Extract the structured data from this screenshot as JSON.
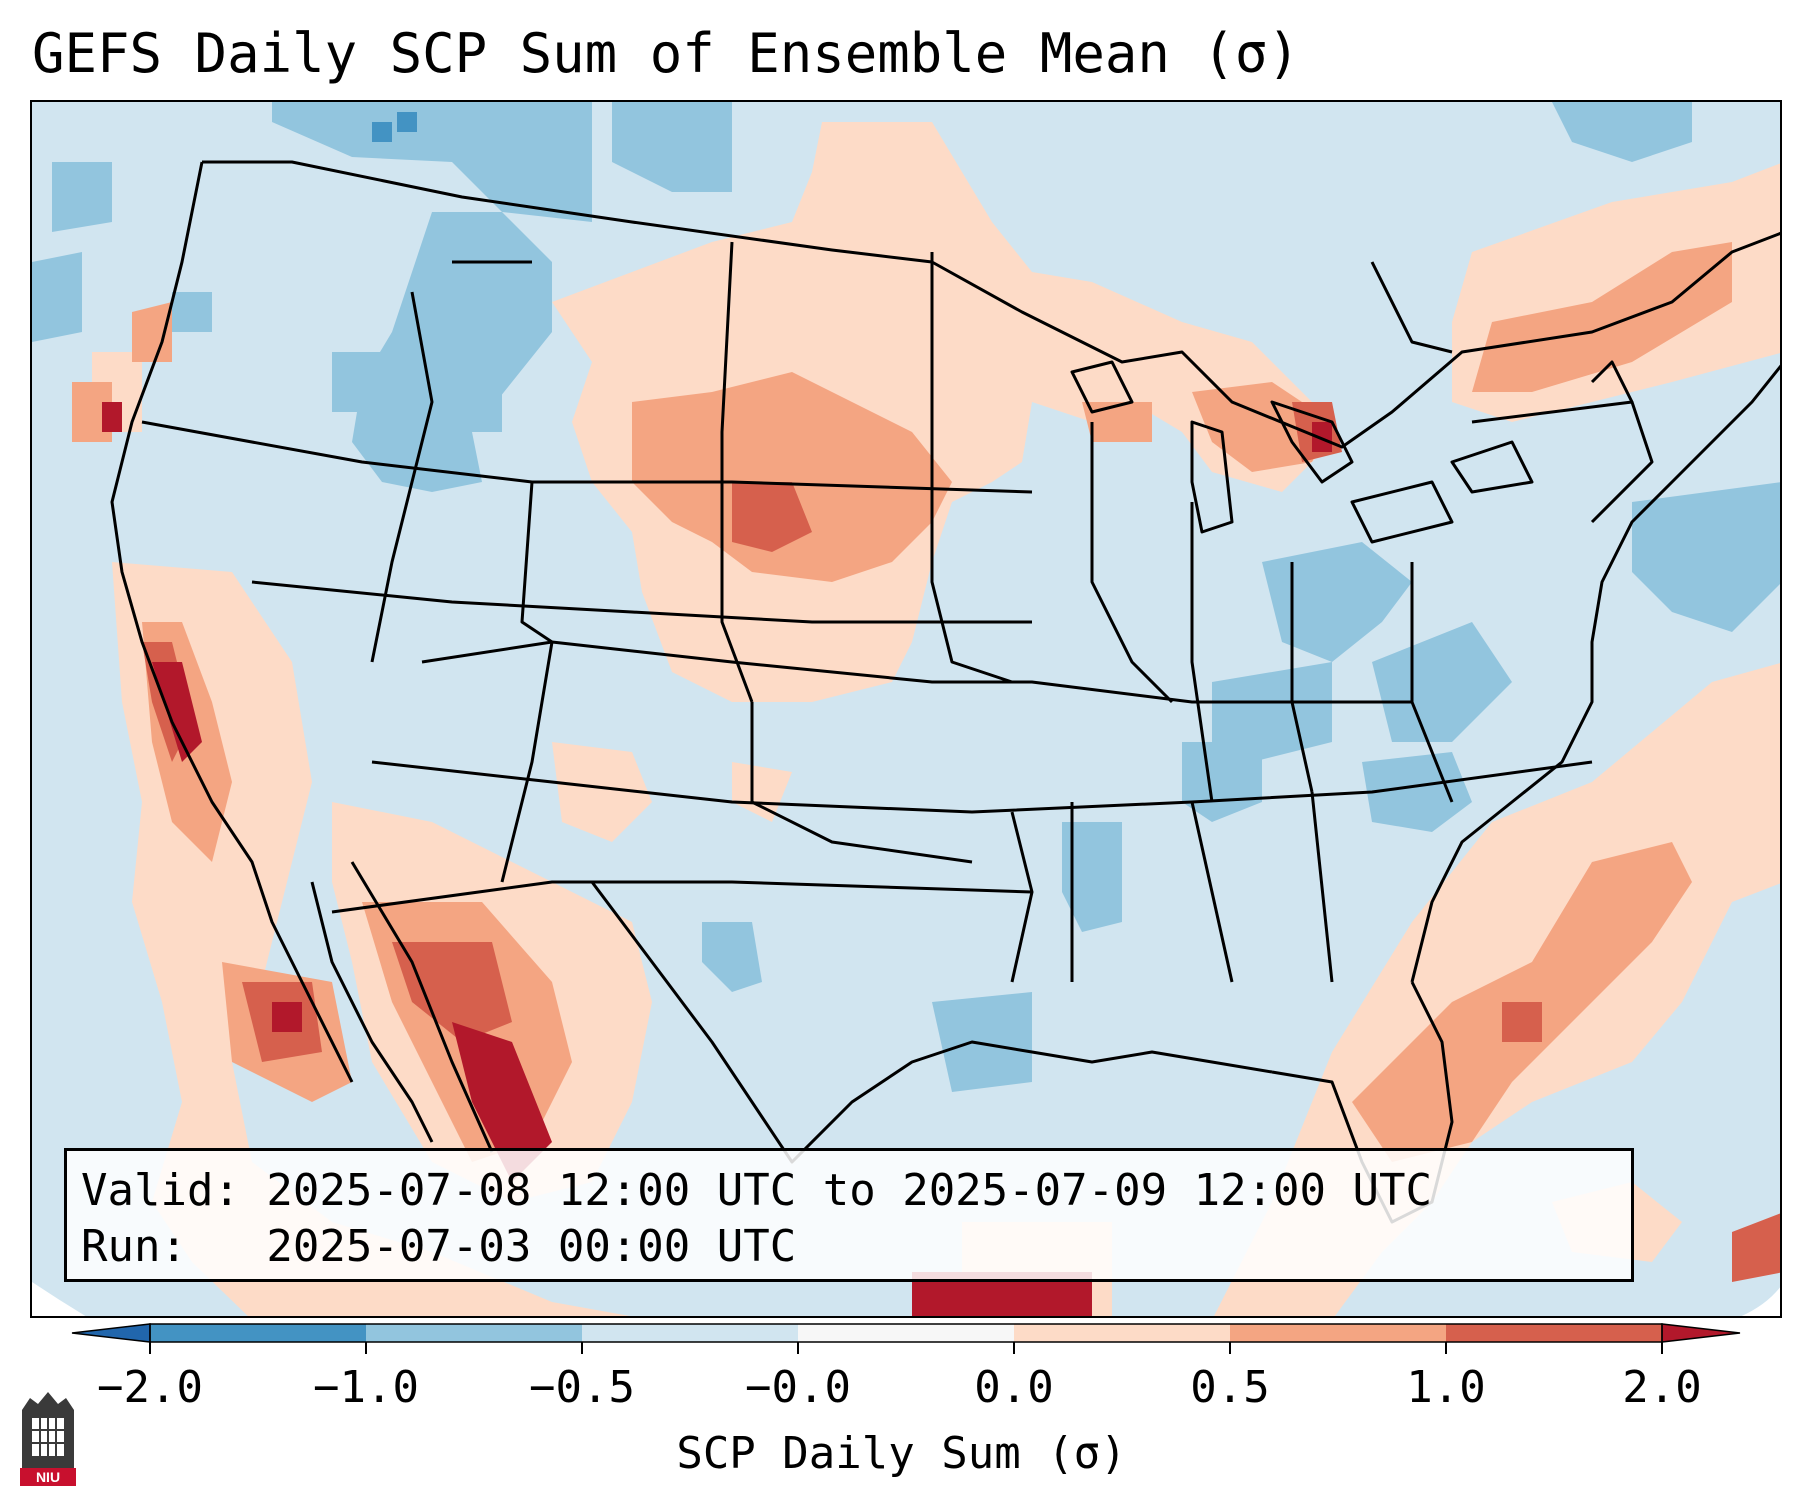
{
  "title": "GEFS Daily SCP Sum of Ensemble Mean (σ)",
  "info": {
    "valid_line": "Valid: 2025-07-08 12:00 UTC to 2025-07-09 12:00 UTC",
    "run_line": "Run:   2025-07-03 00:00 UTC"
  },
  "colorbar": {
    "label": "SCP Daily Sum (σ)",
    "tick_labels": [
      "−2.0",
      "−1.0",
      "−0.5",
      "−0.0",
      "0.0",
      "0.5",
      "1.0",
      "2.0"
    ],
    "colors": [
      "#2166ac",
      "#4393c3",
      "#92c5de",
      "#d1e5f0",
      "#f7f7f7",
      "#fddbc7",
      "#f4a582",
      "#d6604d",
      "#b2182b"
    ]
  },
  "logo": {
    "text": "NIU"
  }
}
